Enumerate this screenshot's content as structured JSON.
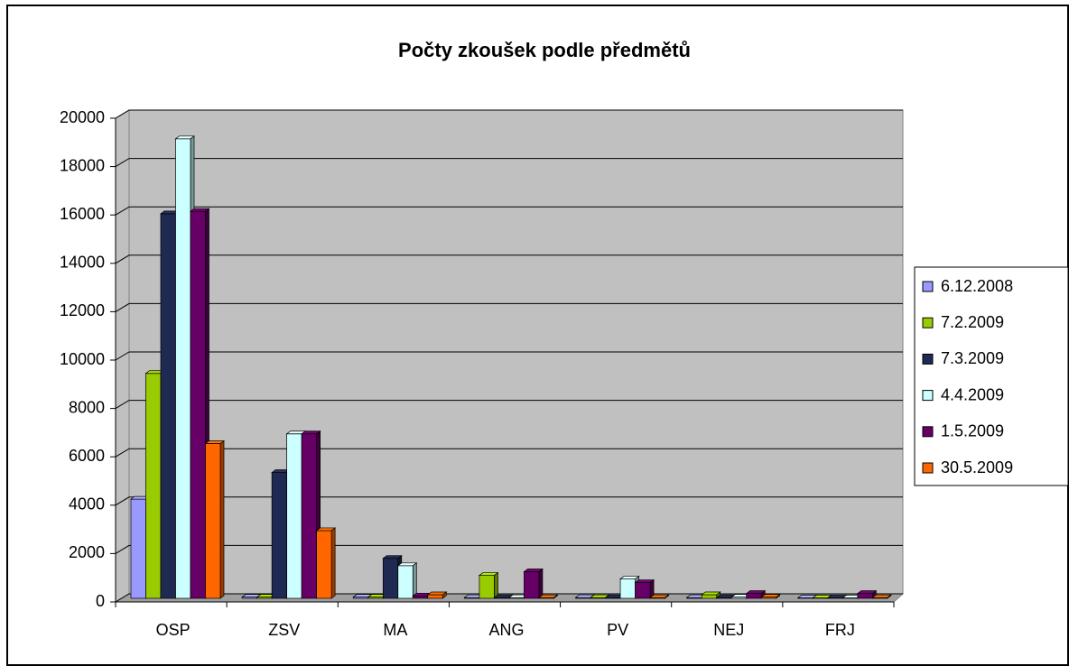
{
  "chart_data": {
    "type": "bar",
    "title": "Počty zkoušek podle předmětů",
    "categories": [
      "OSP",
      "ZSV",
      "MA",
      "ANG",
      "PV",
      "NEJ",
      "FRJ"
    ],
    "series": [
      {
        "name": "6.12.2008",
        "color": "#9999ff",
        "values": [
          4100,
          50,
          50,
          30,
          30,
          30,
          20
        ]
      },
      {
        "name": "7.2.2009",
        "color": "#99cc00",
        "values": [
          9300,
          50,
          50,
          950,
          30,
          150,
          20
        ]
      },
      {
        "name": "7.3.2009",
        "color": "#1f2a52",
        "values": [
          15900,
          5200,
          1650,
          30,
          30,
          30,
          20
        ]
      },
      {
        "name": "4.4.2009",
        "color": "#ccffff",
        "values": [
          19000,
          6800,
          1350,
          30,
          800,
          50,
          20
        ]
      },
      {
        "name": "1.5.2009",
        "color": "#660066",
        "values": [
          16000,
          6800,
          100,
          1100,
          650,
          200,
          200
        ]
      },
      {
        "name": "30.5.2009",
        "color": "#ff6600",
        "values": [
          6400,
          2800,
          150,
          30,
          30,
          50,
          30
        ]
      }
    ],
    "ylim": [
      0,
      20000
    ],
    "yticks": [
      0,
      2000,
      4000,
      6000,
      8000,
      10000,
      12000,
      14000,
      16000,
      18000,
      20000
    ],
    "grid": true,
    "legend": "right"
  }
}
